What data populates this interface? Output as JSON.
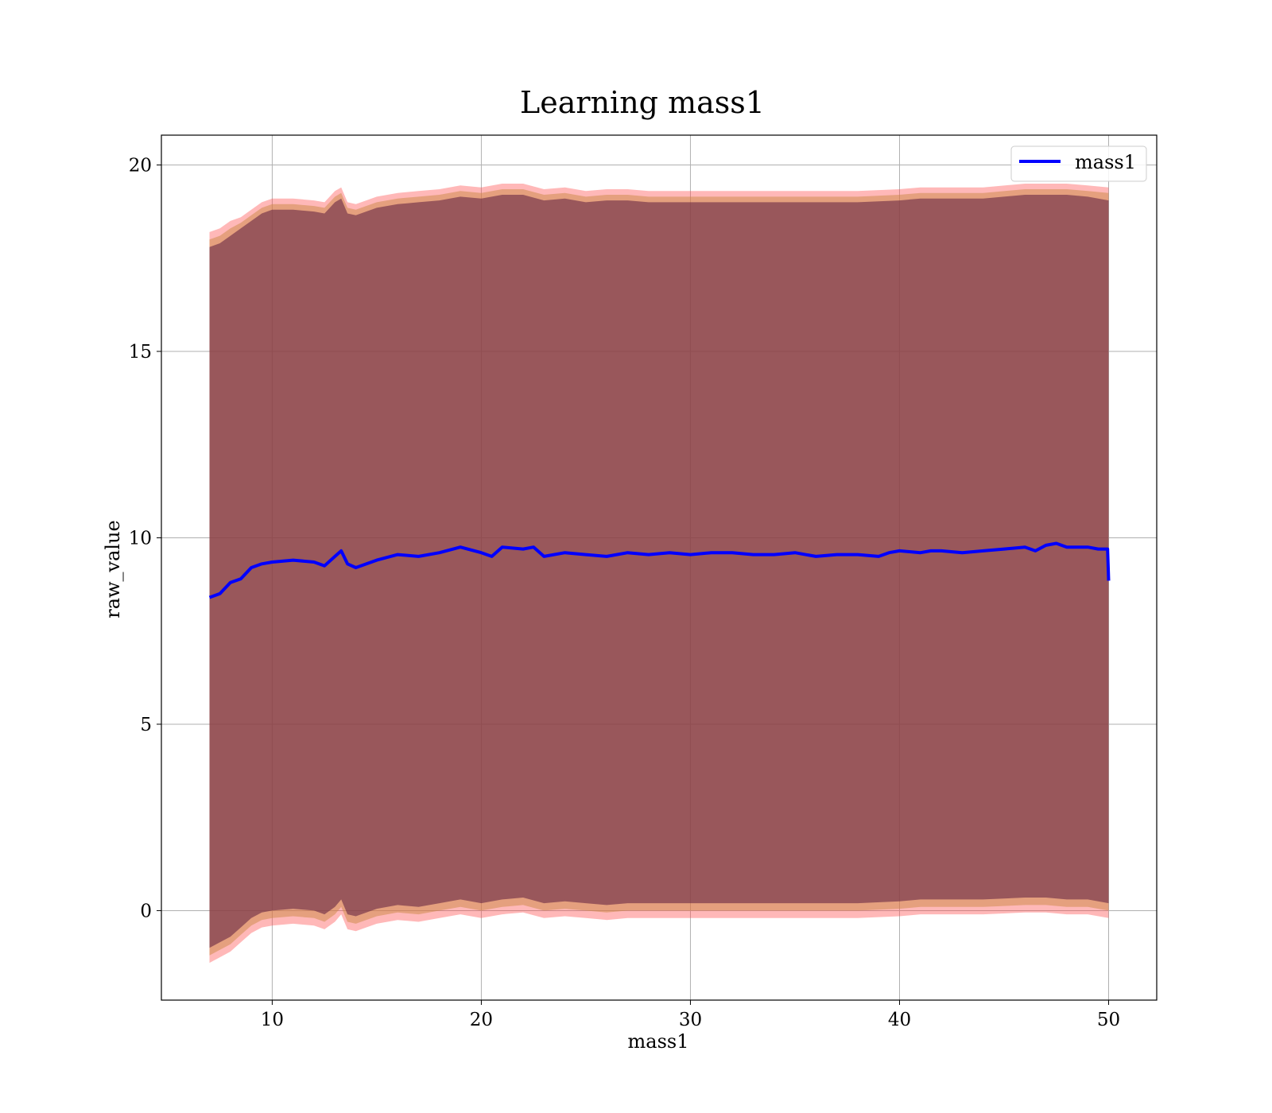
{
  "chart_data": {
    "type": "line",
    "title": "Learning mass1",
    "xlabel": "mass1",
    "ylabel": "raw_value",
    "xlim": [
      4.7,
      52.3
    ],
    "ylim": [
      -2.4,
      20.8
    ],
    "xticks": [
      10,
      20,
      30,
      40,
      50
    ],
    "yticks": [
      0,
      5,
      10,
      15,
      20
    ],
    "xtick_labels": [
      "10",
      "20",
      "30",
      "40",
      "50"
    ],
    "ytick_labels": [
      "0",
      "5",
      "10",
      "15",
      "20"
    ],
    "grid": true,
    "legend": {
      "position": "top-right",
      "entries": [
        "mass1"
      ]
    },
    "series": [
      {
        "name": "mass1",
        "color": "#0000ff",
        "x": [
          7.0,
          7.5,
          8.0,
          8.5,
          9.0,
          9.5,
          10.0,
          11.0,
          12.0,
          12.5,
          13.0,
          13.3,
          13.6,
          14.0,
          15.0,
          16.0,
          17.0,
          18.0,
          19.0,
          20.0,
          20.5,
          21.0,
          22.0,
          22.5,
          23.0,
          24.0,
          25.0,
          26.0,
          27.0,
          28.0,
          29.0,
          30.0,
          31.0,
          32.0,
          33.0,
          34.0,
          35.0,
          36.0,
          37.0,
          38.0,
          39.0,
          39.5,
          40.0,
          41.0,
          41.5,
          42.0,
          43.0,
          44.0,
          45.0,
          46.0,
          46.5,
          47.0,
          47.5,
          48.0,
          49.0,
          49.5,
          49.95,
          50.0
        ],
        "values": [
          8.4,
          8.5,
          8.8,
          8.9,
          9.2,
          9.3,
          9.35,
          9.4,
          9.35,
          9.25,
          9.5,
          9.65,
          9.3,
          9.2,
          9.4,
          9.55,
          9.5,
          9.6,
          9.75,
          9.6,
          9.5,
          9.75,
          9.7,
          9.75,
          9.5,
          9.6,
          9.55,
          9.5,
          9.6,
          9.55,
          9.6,
          9.55,
          9.6,
          9.6,
          9.55,
          9.55,
          9.6,
          9.5,
          9.55,
          9.55,
          9.5,
          9.6,
          9.65,
          9.6,
          9.65,
          9.65,
          9.6,
          9.65,
          9.7,
          9.75,
          9.65,
          9.8,
          9.85,
          9.75,
          9.75,
          9.7,
          9.7,
          8.85
        ]
      }
    ],
    "bands": [
      {
        "color": "#ff4d4d",
        "opacity": 0.4,
        "x": [
          7.0,
          7.5,
          8.0,
          8.5,
          9.0,
          9.5,
          10.0,
          11.0,
          12.0,
          12.5,
          13.0,
          13.3,
          13.6,
          14.0,
          15.0,
          16.0,
          17.0,
          18.0,
          19.0,
          20.0,
          21.0,
          22.0,
          23.0,
          24.0,
          25.0,
          26.0,
          27.0,
          28.0,
          29.0,
          30.0,
          32.0,
          34.0,
          36.0,
          38.0,
          40.0,
          41.0,
          42.0,
          44.0,
          46.0,
          47.0,
          48.0,
          49.0,
          50.0
        ],
        "upper": [
          18.2,
          18.3,
          18.5,
          18.6,
          18.8,
          19.0,
          19.1,
          19.1,
          19.05,
          19.0,
          19.3,
          19.4,
          19.0,
          18.95,
          19.15,
          19.25,
          19.3,
          19.35,
          19.45,
          19.4,
          19.5,
          19.5,
          19.35,
          19.4,
          19.3,
          19.35,
          19.35,
          19.3,
          19.3,
          19.3,
          19.3,
          19.3,
          19.3,
          19.3,
          19.35,
          19.4,
          19.4,
          19.4,
          19.5,
          19.5,
          19.5,
          19.45,
          19.4
        ],
        "lower": [
          -1.4,
          -1.25,
          -1.1,
          -0.85,
          -0.6,
          -0.45,
          -0.4,
          -0.35,
          -0.4,
          -0.5,
          -0.3,
          -0.1,
          -0.5,
          -0.55,
          -0.35,
          -0.25,
          -0.3,
          -0.2,
          -0.1,
          -0.2,
          -0.1,
          -0.05,
          -0.2,
          -0.15,
          -0.2,
          -0.25,
          -0.2,
          -0.2,
          -0.2,
          -0.2,
          -0.2,
          -0.2,
          -0.2,
          -0.2,
          -0.15,
          -0.1,
          -0.1,
          -0.1,
          -0.05,
          -0.05,
          -0.1,
          -0.1,
          -0.2
        ]
      },
      {
        "color": "#cc8844",
        "opacity": 0.5,
        "x": [
          7.0,
          7.5,
          8.0,
          8.5,
          9.0,
          9.5,
          10.0,
          11.0,
          12.0,
          12.5,
          13.0,
          13.3,
          13.6,
          14.0,
          15.0,
          16.0,
          17.0,
          18.0,
          19.0,
          20.0,
          21.0,
          22.0,
          23.0,
          24.0,
          25.0,
          26.0,
          27.0,
          28.0,
          29.0,
          30.0,
          32.0,
          34.0,
          36.0,
          38.0,
          40.0,
          41.0,
          42.0,
          44.0,
          46.0,
          47.0,
          48.0,
          49.0,
          50.0
        ],
        "upper": [
          18.0,
          18.1,
          18.3,
          18.45,
          18.65,
          18.85,
          18.95,
          18.95,
          18.9,
          18.85,
          19.15,
          19.25,
          18.85,
          18.8,
          19.0,
          19.1,
          19.15,
          19.2,
          19.3,
          19.25,
          19.35,
          19.35,
          19.2,
          19.25,
          19.15,
          19.2,
          19.2,
          19.15,
          19.15,
          19.15,
          19.15,
          19.15,
          19.15,
          19.15,
          19.2,
          19.25,
          19.25,
          19.25,
          19.35,
          19.35,
          19.35,
          19.3,
          19.25
        ],
        "lower": [
          -1.2,
          -1.05,
          -0.9,
          -0.65,
          -0.4,
          -0.25,
          -0.2,
          -0.15,
          -0.2,
          -0.3,
          -0.1,
          0.1,
          -0.3,
          -0.35,
          -0.15,
          -0.05,
          -0.1,
          0.0,
          0.1,
          0.0,
          0.1,
          0.15,
          0.0,
          0.05,
          0.0,
          -0.05,
          0.0,
          0.0,
          0.0,
          0.0,
          0.0,
          0.0,
          0.0,
          0.0,
          0.05,
          0.1,
          0.1,
          0.1,
          0.15,
          0.15,
          0.1,
          0.1,
          0.0
        ]
      },
      {
        "color": "#6a2a45",
        "opacity": 0.62,
        "x": [
          7.0,
          7.5,
          8.0,
          8.5,
          9.0,
          9.5,
          10.0,
          11.0,
          12.0,
          12.5,
          13.0,
          13.3,
          13.6,
          14.0,
          15.0,
          16.0,
          17.0,
          18.0,
          19.0,
          20.0,
          21.0,
          22.0,
          23.0,
          24.0,
          25.0,
          26.0,
          27.0,
          28.0,
          29.0,
          30.0,
          32.0,
          34.0,
          36.0,
          38.0,
          40.0,
          41.0,
          42.0,
          44.0,
          46.0,
          47.0,
          48.0,
          49.0,
          50.0
        ],
        "upper": [
          17.8,
          17.9,
          18.1,
          18.3,
          18.5,
          18.7,
          18.8,
          18.8,
          18.75,
          18.7,
          19.0,
          19.1,
          18.7,
          18.65,
          18.85,
          18.95,
          19.0,
          19.05,
          19.15,
          19.1,
          19.2,
          19.2,
          19.05,
          19.1,
          19.0,
          19.05,
          19.05,
          19.0,
          19.0,
          19.0,
          19.0,
          19.0,
          19.0,
          19.0,
          19.05,
          19.1,
          19.1,
          19.1,
          19.2,
          19.2,
          19.2,
          19.15,
          19.05
        ],
        "lower": [
          -1.0,
          -0.85,
          -0.7,
          -0.45,
          -0.2,
          -0.05,
          0.0,
          0.05,
          0.0,
          -0.1,
          0.1,
          0.3,
          -0.1,
          -0.15,
          0.05,
          0.15,
          0.1,
          0.2,
          0.3,
          0.2,
          0.3,
          0.35,
          0.2,
          0.25,
          0.2,
          0.15,
          0.2,
          0.2,
          0.2,
          0.2,
          0.2,
          0.2,
          0.2,
          0.2,
          0.25,
          0.3,
          0.3,
          0.3,
          0.35,
          0.35,
          0.3,
          0.3,
          0.2
        ]
      }
    ]
  }
}
